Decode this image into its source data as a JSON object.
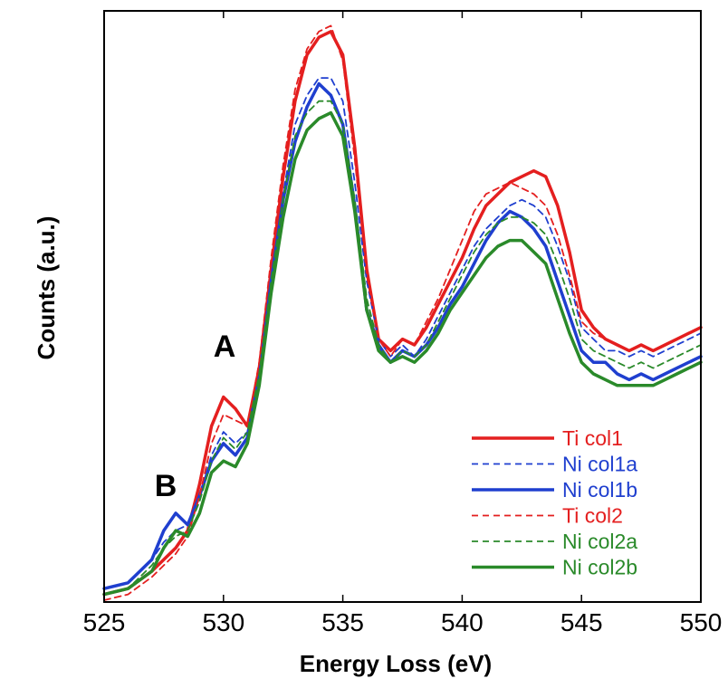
{
  "chart_data": {
    "type": "line",
    "title": "",
    "xlabel": "Energy Loss (eV)",
    "ylabel": "Counts (a.u.)",
    "xlim": [
      525,
      550
    ],
    "ylim": [
      0,
      1
    ],
    "xticks": [
      "525",
      "530",
      "535",
      "540",
      "545",
      "550"
    ],
    "grid": false,
    "legend_position": "bottom-right",
    "annotations": [
      {
        "label": "A",
        "x": 530,
        "y": 0.45
      },
      {
        "label": "B",
        "x": 527.5,
        "y": 0.2
      }
    ],
    "series": [
      {
        "name": "Ti col1",
        "color": "#e41f1f",
        "dash": "solid",
        "width": 3.5,
        "x": [
          525,
          526,
          527,
          527.5,
          528,
          528.5,
          529,
          529.5,
          530,
          530.5,
          531,
          531.5,
          532,
          532.5,
          533,
          533.5,
          534,
          534.5,
          535,
          535.5,
          536,
          536.5,
          537,
          537.5,
          538,
          538.5,
          539,
          539.5,
          540,
          540.5,
          541,
          541.5,
          542,
          542.5,
          543,
          543.5,
          544,
          544.5,
          545,
          545.5,
          546,
          546.5,
          547,
          547.5,
          548,
          548.5,
          549,
          549.5,
          550
        ],
        "y": [
          0.01,
          0.02,
          0.05,
          0.07,
          0.09,
          0.12,
          0.2,
          0.3,
          0.35,
          0.33,
          0.3,
          0.4,
          0.57,
          0.73,
          0.86,
          0.94,
          0.97,
          0.98,
          0.94,
          0.78,
          0.57,
          0.45,
          0.43,
          0.45,
          0.44,
          0.47,
          0.51,
          0.55,
          0.59,
          0.64,
          0.68,
          0.7,
          0.72,
          0.73,
          0.74,
          0.73,
          0.68,
          0.6,
          0.5,
          0.47,
          0.45,
          0.44,
          0.43,
          0.44,
          0.43,
          0.44,
          0.45,
          0.46,
          0.47
        ]
      },
      {
        "name": "Ni col1a",
        "color": "#1f3fcf",
        "dash": "dashed",
        "width": 1.8,
        "x": [
          525,
          526,
          527,
          527.5,
          528,
          528.5,
          529,
          529.5,
          530,
          530.5,
          531,
          531.5,
          532,
          532.5,
          533,
          533.5,
          534,
          534.5,
          535,
          535.5,
          536,
          536.5,
          537,
          537.5,
          538,
          538.5,
          539,
          539.5,
          540,
          540.5,
          541,
          541.5,
          542,
          542.5,
          543,
          543.5,
          544,
          544.5,
          545,
          545.5,
          546,
          546.5,
          547,
          547.5,
          548,
          548.5,
          549,
          549.5,
          550
        ],
        "y": [
          0.02,
          0.03,
          0.07,
          0.1,
          0.12,
          0.13,
          0.18,
          0.25,
          0.29,
          0.27,
          0.29,
          0.39,
          0.55,
          0.7,
          0.82,
          0.87,
          0.9,
          0.9,
          0.86,
          0.72,
          0.55,
          0.45,
          0.42,
          0.44,
          0.42,
          0.45,
          0.49,
          0.53,
          0.57,
          0.61,
          0.64,
          0.66,
          0.68,
          0.69,
          0.68,
          0.66,
          0.61,
          0.55,
          0.47,
          0.45,
          0.43,
          0.43,
          0.42,
          0.43,
          0.42,
          0.43,
          0.44,
          0.45,
          0.46
        ]
      },
      {
        "name": "Ni col1b",
        "color": "#1f3fcf",
        "dash": "solid",
        "width": 3.5,
        "x": [
          525,
          526,
          527,
          527.5,
          528,
          528.5,
          529,
          529.5,
          530,
          530.5,
          531,
          531.5,
          532,
          532.5,
          533,
          533.5,
          534,
          534.5,
          535,
          535.5,
          536,
          536.5,
          537,
          537.5,
          538,
          538.5,
          539,
          539.5,
          540,
          540.5,
          541,
          541.5,
          542,
          542.5,
          543,
          543.5,
          544,
          544.5,
          545,
          545.5,
          546,
          546.5,
          547,
          547.5,
          548,
          548.5,
          549,
          549.5,
          550
        ],
        "y": [
          0.02,
          0.03,
          0.07,
          0.12,
          0.15,
          0.13,
          0.18,
          0.24,
          0.27,
          0.25,
          0.28,
          0.38,
          0.55,
          0.69,
          0.79,
          0.85,
          0.89,
          0.87,
          0.82,
          0.68,
          0.5,
          0.44,
          0.41,
          0.43,
          0.42,
          0.44,
          0.47,
          0.51,
          0.54,
          0.58,
          0.62,
          0.65,
          0.67,
          0.66,
          0.64,
          0.61,
          0.55,
          0.49,
          0.43,
          0.41,
          0.41,
          0.39,
          0.38,
          0.39,
          0.38,
          0.39,
          0.4,
          0.41,
          0.42
        ]
      },
      {
        "name": "Ti col2",
        "color": "#e41f1f",
        "dash": "dashed",
        "width": 1.8,
        "x": [
          525,
          526,
          527,
          527.5,
          528,
          528.5,
          529,
          529.5,
          530,
          530.5,
          531,
          531.5,
          532,
          532.5,
          533,
          533.5,
          534,
          534.5,
          535,
          535.5,
          536,
          536.5,
          537,
          537.5,
          538,
          538.5,
          539,
          539.5,
          540,
          540.5,
          541,
          541.5,
          542,
          542.5,
          543,
          543.5,
          544,
          544.5,
          545,
          545.5,
          546,
          546.5,
          547,
          547.5,
          548,
          548.5,
          549,
          549.5,
          550
        ],
        "y": [
          0.0,
          0.01,
          0.04,
          0.06,
          0.08,
          0.11,
          0.18,
          0.27,
          0.32,
          0.31,
          0.3,
          0.41,
          0.59,
          0.75,
          0.88,
          0.95,
          0.98,
          0.99,
          0.93,
          0.76,
          0.56,
          0.45,
          0.42,
          0.45,
          0.44,
          0.48,
          0.52,
          0.57,
          0.62,
          0.67,
          0.7,
          0.71,
          0.72,
          0.71,
          0.7,
          0.68,
          0.63,
          0.56,
          0.48,
          0.46,
          0.45,
          0.44,
          0.43,
          0.44,
          0.43,
          0.44,
          0.45,
          0.46,
          0.47
        ]
      },
      {
        "name": "Ni col2a",
        "color": "#2a8a2a",
        "dash": "dashed",
        "width": 1.8,
        "x": [
          525,
          526,
          527,
          527.5,
          528,
          528.5,
          529,
          529.5,
          530,
          530.5,
          531,
          531.5,
          532,
          532.5,
          533,
          533.5,
          534,
          534.5,
          535,
          535.5,
          536,
          536.5,
          537,
          537.5,
          538,
          538.5,
          539,
          539.5,
          540,
          540.5,
          541,
          541.5,
          542,
          542.5,
          543,
          543.5,
          544,
          544.5,
          545,
          545.5,
          546,
          546.5,
          547,
          547.5,
          548,
          548.5,
          549,
          549.5,
          550
        ],
        "y": [
          0.01,
          0.02,
          0.06,
          0.09,
          0.11,
          0.12,
          0.17,
          0.24,
          0.28,
          0.26,
          0.29,
          0.39,
          0.55,
          0.69,
          0.8,
          0.84,
          0.86,
          0.86,
          0.82,
          0.69,
          0.52,
          0.44,
          0.41,
          0.43,
          0.42,
          0.44,
          0.48,
          0.52,
          0.56,
          0.6,
          0.63,
          0.65,
          0.66,
          0.66,
          0.65,
          0.63,
          0.58,
          0.52,
          0.45,
          0.43,
          0.42,
          0.41,
          0.4,
          0.41,
          0.4,
          0.41,
          0.42,
          0.43,
          0.44
        ]
      },
      {
        "name": "Ni col2b",
        "color": "#2a8a2a",
        "dash": "solid",
        "width": 3.5,
        "x": [
          525,
          526,
          527,
          527.5,
          528,
          528.5,
          529,
          529.5,
          530,
          530.5,
          531,
          531.5,
          532,
          532.5,
          533,
          533.5,
          534,
          534.5,
          535,
          535.5,
          536,
          536.5,
          537,
          537.5,
          538,
          538.5,
          539,
          539.5,
          540,
          540.5,
          541,
          541.5,
          542,
          542.5,
          543,
          543.5,
          544,
          544.5,
          545,
          545.5,
          546,
          546.5,
          547,
          547.5,
          548,
          548.5,
          549,
          549.5,
          550
        ],
        "y": [
          0.01,
          0.02,
          0.05,
          0.09,
          0.12,
          0.11,
          0.15,
          0.22,
          0.24,
          0.23,
          0.27,
          0.37,
          0.53,
          0.66,
          0.76,
          0.81,
          0.83,
          0.84,
          0.8,
          0.67,
          0.5,
          0.43,
          0.41,
          0.42,
          0.41,
          0.43,
          0.46,
          0.5,
          0.53,
          0.56,
          0.59,
          0.61,
          0.62,
          0.62,
          0.6,
          0.58,
          0.52,
          0.46,
          0.41,
          0.39,
          0.38,
          0.37,
          0.37,
          0.37,
          0.37,
          0.38,
          0.39,
          0.4,
          0.41
        ]
      }
    ]
  }
}
